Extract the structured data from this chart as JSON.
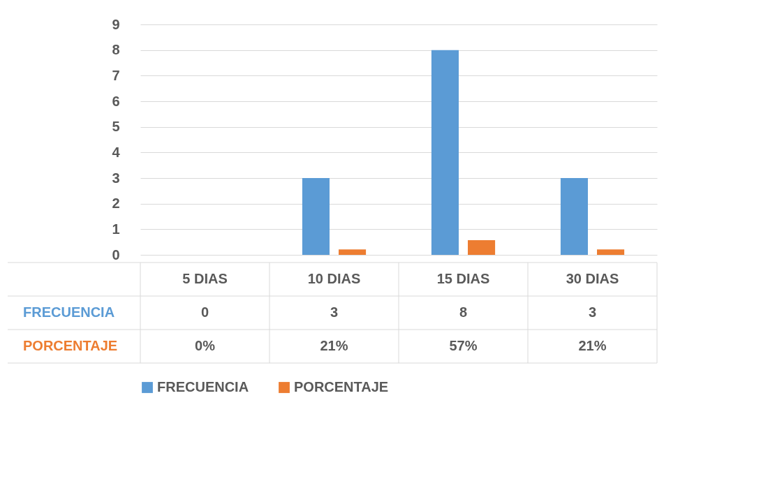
{
  "chart_data": {
    "type": "bar",
    "categories": [
      "5 DIAS",
      "10 DIAS",
      "15 DIAS",
      "30 DIAS"
    ],
    "series": [
      {
        "name": "FRECUENCIA",
        "color": "#5b9bd5",
        "values": [
          0,
          3,
          8,
          3
        ],
        "value_labels": [
          "0",
          "3",
          "8",
          "3"
        ]
      },
      {
        "name": "PORCENTAJE",
        "color": "#ed7d31",
        "values": [
          0,
          0.21,
          0.57,
          0.21
        ],
        "value_labels": [
          "0%",
          "21%",
          "57%",
          "21%"
        ]
      }
    ],
    "ylim": [
      0,
      9
    ],
    "yticks": [
      0,
      1,
      2,
      3,
      4,
      5,
      6,
      7,
      8,
      9
    ],
    "grid": "y",
    "legend": "bottom"
  }
}
